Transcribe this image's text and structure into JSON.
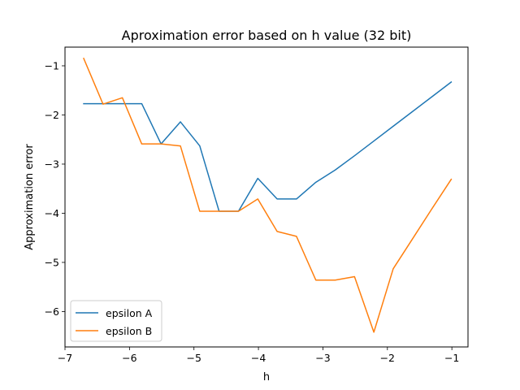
{
  "chart_data": {
    "type": "line",
    "title": "Aproximation error based on h value (32 bit)",
    "xlabel": "h",
    "ylabel": "Approximation error",
    "xlim": [
      -7.0,
      -0.75
    ],
    "ylim": [
      -6.72,
      -0.62
    ],
    "xticks": [
      -7,
      -6,
      -5,
      -4,
      -3,
      -2,
      -1
    ],
    "yticks": [
      -6,
      -5,
      -4,
      -3,
      -2,
      -1
    ],
    "xtick_labels": [
      "−7",
      "−6",
      "−5",
      "−4",
      "−3",
      "−2",
      "−1"
    ],
    "ytick_labels": [
      "−6",
      "−5",
      "−4",
      "−3",
      "−2",
      "−1"
    ],
    "grid": false,
    "legend_position": "lower-left",
    "series": [
      {
        "name": "epsilon A",
        "color": "#1f77b4",
        "x": [
          -6.71,
          -6.41,
          -6.11,
          -5.81,
          -5.51,
          -5.21,
          -4.91,
          -4.61,
          -4.31,
          -4.01,
          -3.71,
          -3.41,
          -3.11,
          -2.81,
          -2.51,
          -2.21,
          -1.91,
          -1.61,
          -1.31,
          -1.01
        ],
        "y": [
          -1.77,
          -1.77,
          -1.77,
          -1.77,
          -2.59,
          -2.14,
          -2.63,
          -3.96,
          -3.96,
          -3.29,
          -3.71,
          -3.71,
          -3.37,
          -3.12,
          -2.83,
          -2.53,
          -2.23,
          -1.93,
          -1.63,
          -1.33
        ]
      },
      {
        "name": "epsilon B",
        "color": "#ff7f0e",
        "x": [
          -6.71,
          -6.41,
          -6.11,
          -5.81,
          -5.51,
          -5.21,
          -4.91,
          -4.61,
          -4.31,
          -4.01,
          -3.71,
          -3.41,
          -3.11,
          -2.81,
          -2.51,
          -2.21,
          -1.91,
          -1.61,
          -1.31,
          -1.01
        ],
        "y": [
          -0.85,
          -1.78,
          -1.65,
          -2.59,
          -2.59,
          -2.63,
          -3.96,
          -3.96,
          -3.96,
          -3.71,
          -4.37,
          -4.47,
          -5.36,
          -5.36,
          -5.29,
          -6.42,
          -5.13,
          -4.52,
          -3.91,
          -3.31
        ]
      }
    ]
  }
}
